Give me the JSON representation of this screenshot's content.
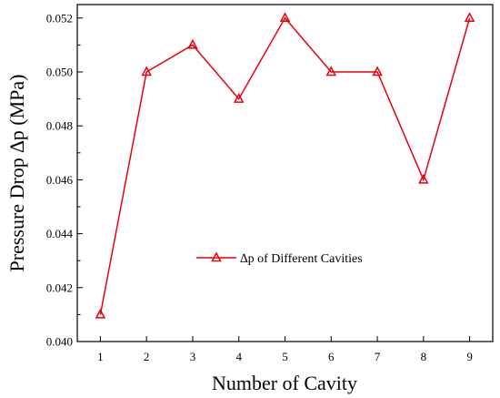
{
  "chart_data": {
    "type": "line",
    "xlabel": "Number of Cavity",
    "ylabel": "Pressure Drop ∆p (MPa)",
    "x": [
      1,
      2,
      3,
      4,
      5,
      6,
      7,
      8,
      9
    ],
    "xticks": [
      "1",
      "2",
      "3",
      "4",
      "5",
      "6",
      "7",
      "8",
      "9"
    ],
    "xlim": [
      0.5,
      9.5
    ],
    "ylim": [
      0.04,
      0.0525
    ],
    "yticks": [
      "0.040",
      "0.042",
      "0.044",
      "0.046",
      "0.048",
      "0.050",
      "0.052"
    ],
    "grid": false,
    "legend_position": "center",
    "series": [
      {
        "name": "∆p of Different Cavities",
        "color": "#e8000b",
        "marker": "triangle-open",
        "values": [
          0.041,
          0.05,
          0.051,
          0.049,
          0.052,
          0.05,
          0.05,
          0.046,
          0.052
        ]
      }
    ]
  }
}
